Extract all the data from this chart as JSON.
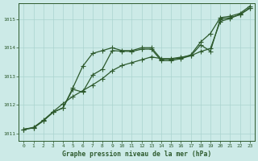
{
  "xlabel": "Graphe pression niveau de la mer (hPa)",
  "x_ticks": [
    0,
    1,
    2,
    3,
    4,
    5,
    6,
    7,
    8,
    9,
    10,
    11,
    12,
    13,
    14,
    15,
    16,
    17,
    18,
    19,
    20,
    21,
    22,
    23
  ],
  "ylim": [
    1010.75,
    1015.55
  ],
  "xlim": [
    -0.5,
    23.5
  ],
  "yticks": [
    1011,
    1012,
    1013,
    1014,
    1015
  ],
  "background_color": "#cceae7",
  "grid_color": "#aad4d0",
  "line_color": "#2d5a2d",
  "line1": [
    1011.15,
    1011.2,
    1011.45,
    1011.75,
    1011.9,
    1012.6,
    1013.35,
    1013.8,
    1013.9,
    1014.0,
    1013.9,
    1013.9,
    1014.0,
    1014.0,
    1013.6,
    1013.6,
    1013.65,
    1013.75,
    1014.2,
    1014.5,
    1015.05,
    1015.1,
    1015.2,
    1015.45
  ],
  "line2": [
    1011.15,
    1011.2,
    1011.45,
    1011.75,
    1011.9,
    1012.55,
    1012.45,
    1013.05,
    1013.25,
    1013.9,
    1013.88,
    1013.87,
    1013.95,
    1013.95,
    1013.55,
    1013.55,
    1013.62,
    1013.72,
    1014.1,
    1013.88,
    1015.0,
    1015.05,
    1015.15,
    1015.38
  ],
  "line3": [
    1011.15,
    1011.22,
    1011.47,
    1011.77,
    1012.05,
    1012.3,
    1012.5,
    1012.7,
    1012.92,
    1013.2,
    1013.38,
    1013.48,
    1013.58,
    1013.68,
    1013.62,
    1013.62,
    1013.67,
    1013.72,
    1013.87,
    1013.97,
    1014.92,
    1015.02,
    1015.17,
    1015.38
  ],
  "marker_size": 2.2,
  "linewidth": 0.9,
  "tick_fontsize": 4.5,
  "label_fontsize": 5.8
}
